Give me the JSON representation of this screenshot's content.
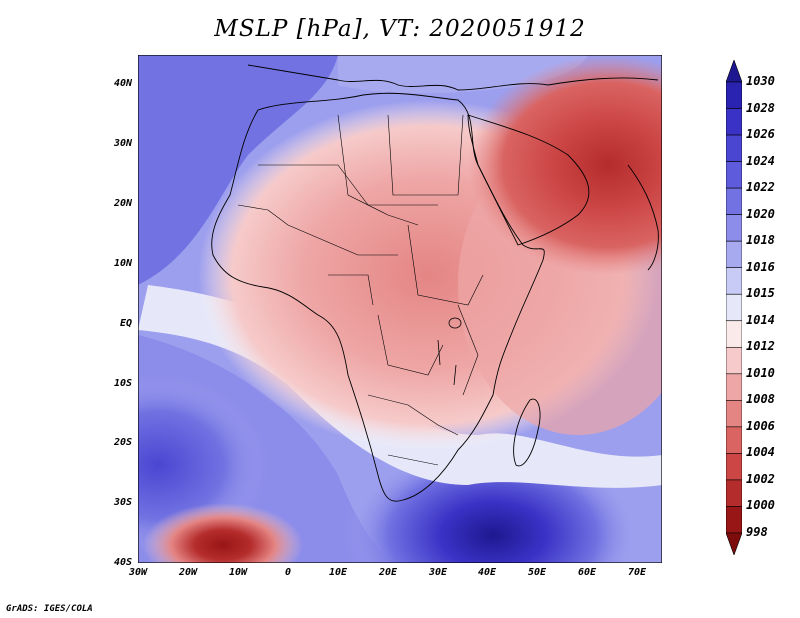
{
  "title": "MSLP [hPa], VT: 2020051912",
  "credit": "GrADS: IGES/COLA",
  "lat_labels": [
    "40N",
    "30N",
    "20N",
    "10N",
    "EQ",
    "10S",
    "20S",
    "30S",
    "40S"
  ],
  "lon_labels": [
    "30W",
    "20W",
    "10W",
    "0",
    "10E",
    "20E",
    "30E",
    "40E",
    "50E",
    "60E",
    "70E"
  ],
  "colorbar": {
    "labels": [
      "1030",
      "1028",
      "1026",
      "1024",
      "1022",
      "1020",
      "1018",
      "1016",
      "1015",
      "1014",
      "1012",
      "1010",
      "1008",
      "1006",
      "1004",
      "1002",
      "1000",
      "998"
    ],
    "colors": [
      "#1e1890",
      "#2a22b0",
      "#3a32c6",
      "#4b46d2",
      "#5e5cdc",
      "#7272e2",
      "#8c8cea",
      "#a8aaf0",
      "#c8cbf6",
      "#e6e8fa",
      "#fbeaea",
      "#f6caca",
      "#eea7a6",
      "#e48584",
      "#d96462",
      "#cc4646",
      "#b52c2c",
      "#981616",
      "#7d0c0c"
    ]
  },
  "map_data": {
    "variable": "MSLP",
    "units": "hPa",
    "valid_time": "2020051912",
    "lon_range": [
      -30,
      75
    ],
    "lat_range": [
      -40,
      45
    ]
  }
}
